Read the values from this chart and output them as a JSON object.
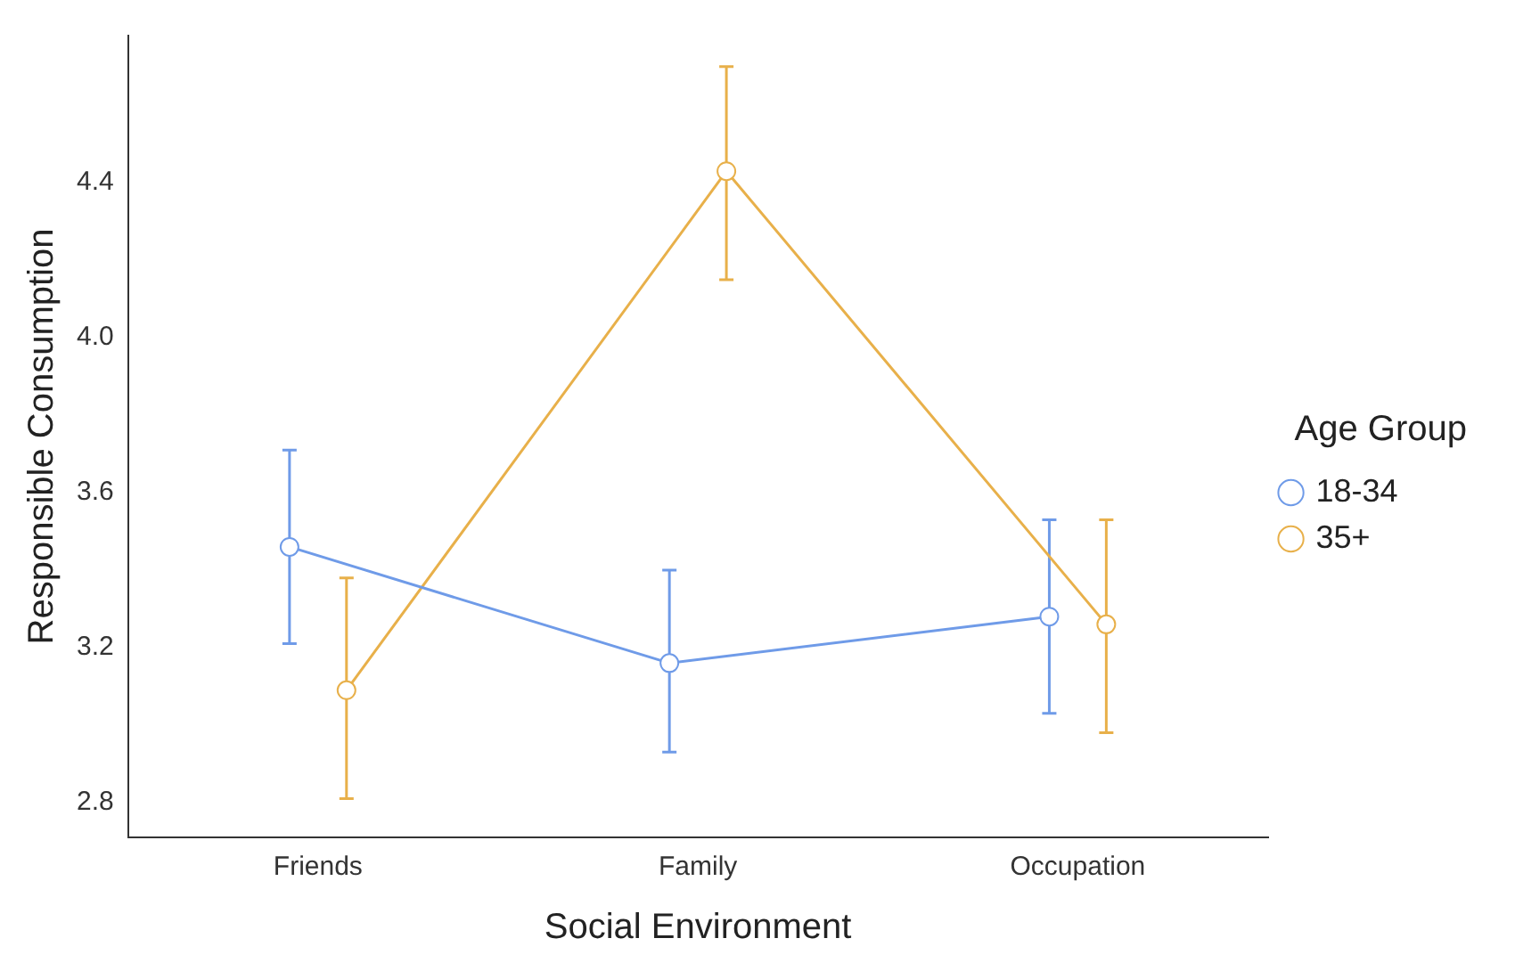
{
  "chart_data": {
    "type": "line",
    "xlabel": "Social Environment",
    "ylabel": "Responsible Consumption",
    "legend_title": "Age Group",
    "categories": [
      "Friends",
      "Family",
      "Occupation"
    ],
    "series": [
      {
        "name": "18-34",
        "color": "#6f9be8",
        "values": [
          3.46,
          3.16,
          3.28
        ],
        "errors": [
          [
            3.21,
            3.71
          ],
          [
            2.93,
            3.4
          ],
          [
            3.03,
            3.53
          ]
        ]
      },
      {
        "name": "35+",
        "color": "#e8b04a",
        "values": [
          3.09,
          4.43,
          3.26
        ],
        "errors": [
          [
            2.81,
            3.38
          ],
          [
            4.15,
            4.7
          ],
          [
            2.98,
            3.53
          ]
        ]
      }
    ],
    "ylim": [
      2.71,
      4.78
    ],
    "yticks": [
      2.8,
      3.2,
      3.6,
      {
        "value": 4,
        "label": "4.0"
      },
      4.4
    ],
    "grid": false,
    "legend": "right",
    "marker": "circle",
    "line_style": "solid"
  }
}
